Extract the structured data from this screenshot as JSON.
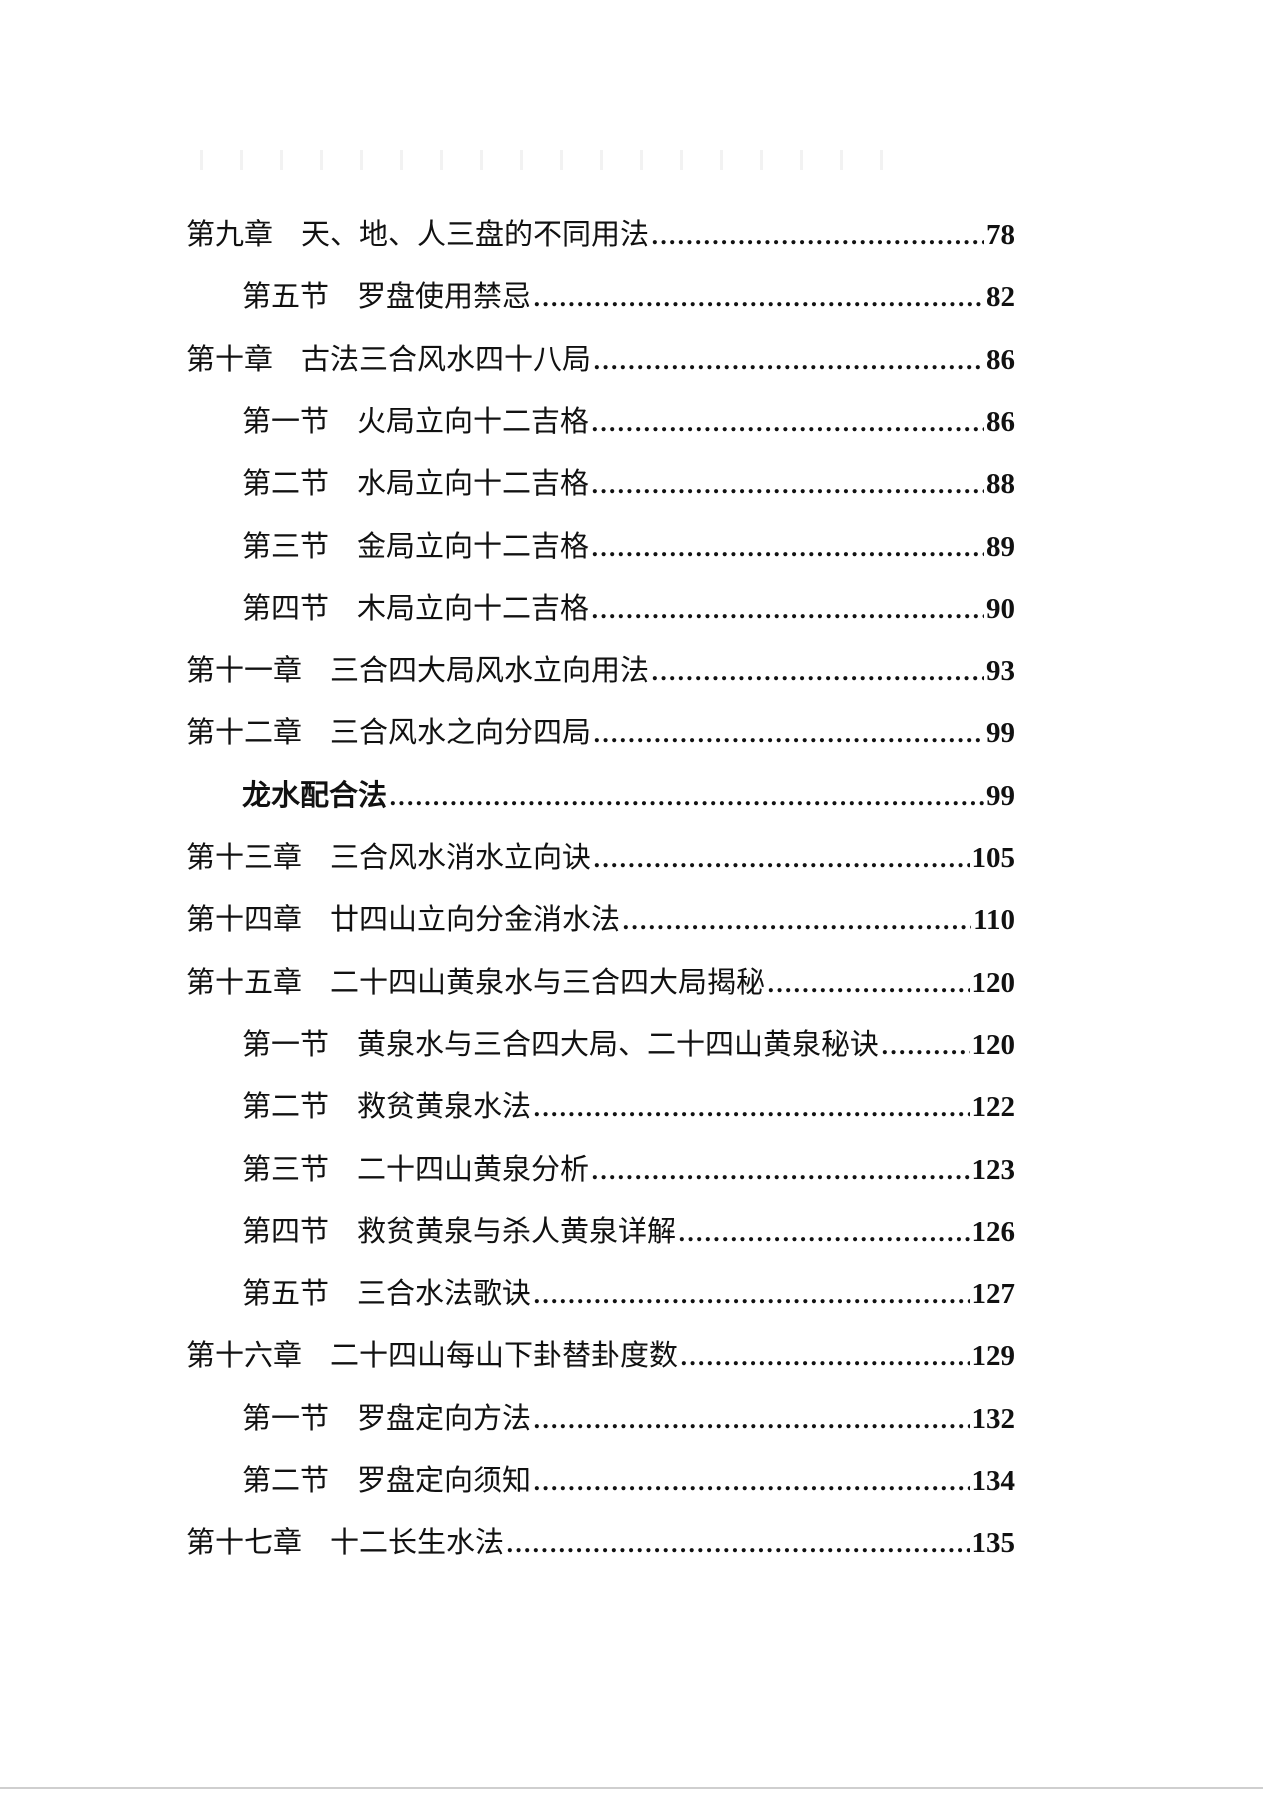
{
  "toc": [
    {
      "level": "chapter",
      "label": "第九章",
      "title": "天、地、人三盘的不同用法",
      "page": "78"
    },
    {
      "level": "section",
      "label": "第五节",
      "title": "罗盘使用禁忌",
      "page": "82"
    },
    {
      "level": "chapter",
      "label": "第十章",
      "title": "古法三合风水四十八局",
      "page": "86"
    },
    {
      "level": "section",
      "label": "第一节",
      "title": "火局立向十二吉格",
      "page": "86"
    },
    {
      "level": "section",
      "label": "第二节",
      "title": "水局立向十二吉格",
      "page": "88"
    },
    {
      "level": "section",
      "label": "第三节",
      "title": "金局立向十二吉格",
      "page": "89"
    },
    {
      "level": "section",
      "label": "第四节",
      "title": "木局立向十二吉格",
      "page": "90"
    },
    {
      "level": "chapter",
      "label": "第十一章",
      "title": "三合四大局风水立向用法",
      "page": "93"
    },
    {
      "level": "chapter",
      "label": "第十二章",
      "title": "三合风水之向分四局",
      "page": "99"
    },
    {
      "level": "section",
      "label": "",
      "title": "龙水配合法",
      "page": "99"
    },
    {
      "level": "chapter",
      "label": "第十三章",
      "title": "三合风水消水立向诀",
      "page": "105"
    },
    {
      "level": "chapter",
      "label": "第十四章",
      "title": "廿四山立向分金消水法",
      "page": "110"
    },
    {
      "level": "chapter",
      "label": "第十五章",
      "title": "二十四山黄泉水与三合四大局揭秘",
      "page": "120"
    },
    {
      "level": "section",
      "label": "第一节",
      "title": "黄泉水与三合四大局、二十四山黄泉秘诀",
      "page": "120"
    },
    {
      "level": "section",
      "label": "第二节",
      "title": "救贫黄泉水法",
      "page": "122"
    },
    {
      "level": "section",
      "label": "第三节",
      "title": "二十四山黄泉分析",
      "page": "123"
    },
    {
      "level": "section",
      "label": "第四节",
      "title": "救贫黄泉与杀人黄泉详解",
      "page": "126"
    },
    {
      "level": "section",
      "label": "第五节",
      "title": "三合水法歌诀",
      "page": "127"
    },
    {
      "level": "chapter",
      "label": "第十六章",
      "title": "二十四山每山下卦替卦度数",
      "page": "129"
    },
    {
      "level": "section",
      "label": "第一节",
      "title": "罗盘定向方法",
      "page": "132"
    },
    {
      "level": "section",
      "label": "第二节",
      "title": "罗盘定向须知",
      "page": "134"
    },
    {
      "level": "chapter",
      "label": "第十七章",
      "title": "十二长生水法",
      "page": "135"
    }
  ]
}
